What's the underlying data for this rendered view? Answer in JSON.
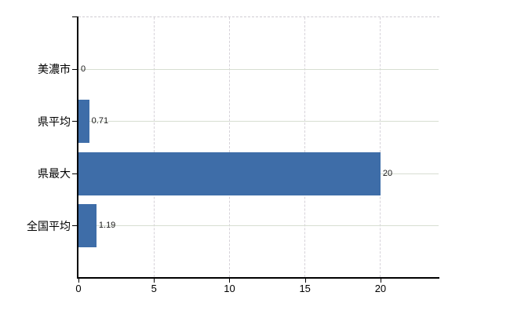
{
  "chart_data": {
    "type": "bar",
    "orientation": "horizontal",
    "title": "",
    "categories": [
      "美濃市",
      "県平均",
      "県最大",
      "全国平均"
    ],
    "values": [
      0,
      0.71,
      20,
      1.19
    ],
    "value_labels": [
      "0",
      "0.71",
      "20",
      "1.19"
    ],
    "x_ticks": [
      0,
      5,
      10,
      15,
      20
    ],
    "x_tick_labels": [
      "0",
      "5",
      "10",
      "15",
      "20"
    ],
    "xlim": [
      0,
      23.9
    ],
    "ylabel": "",
    "xlabel": "",
    "grid": true,
    "legend": false,
    "colors": {
      "bar": "#3e6da8",
      "axis": "#000000",
      "horizontal_gridline": "#d7ded2",
      "vertical_gridline": "#d6d2d9",
      "top_border": "#cfccd2",
      "value_label_text": "#1a1a1a",
      "tick_label_text": "#000000",
      "background": "#ffffff"
    }
  }
}
